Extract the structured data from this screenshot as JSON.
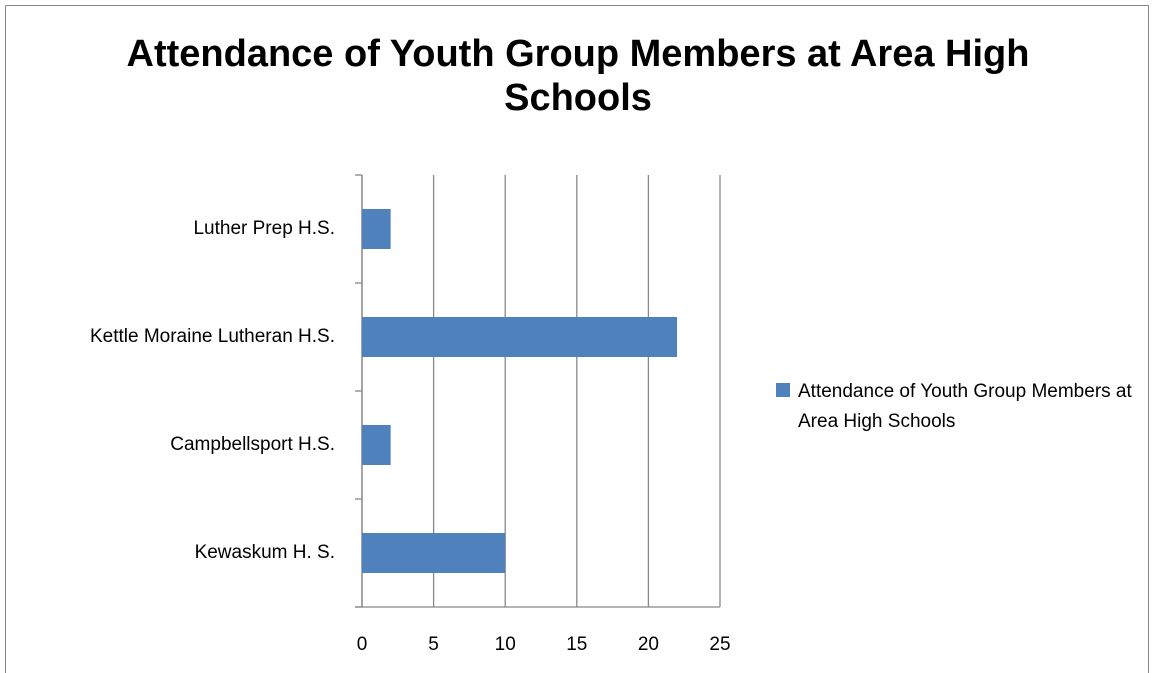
{
  "chart_data": {
    "type": "hbar",
    "title": "Attendance of Youth Group Members at Area High Schools",
    "categories": [
      "Kewaskum H. S.",
      "Campbellsport H.S.",
      "Kettle Moraine Lutheran H.S.",
      "Luther Prep H.S."
    ],
    "series": [
      {
        "name": "Attendance of Youth Group Members at Area High Schools",
        "color": "#4f81bd",
        "values": [
          10,
          2,
          22,
          2
        ]
      }
    ],
    "xlim": [
      0,
      25
    ],
    "xticks": [
      0,
      5,
      10,
      15,
      20,
      25
    ],
    "grid": true,
    "legend": "right"
  }
}
